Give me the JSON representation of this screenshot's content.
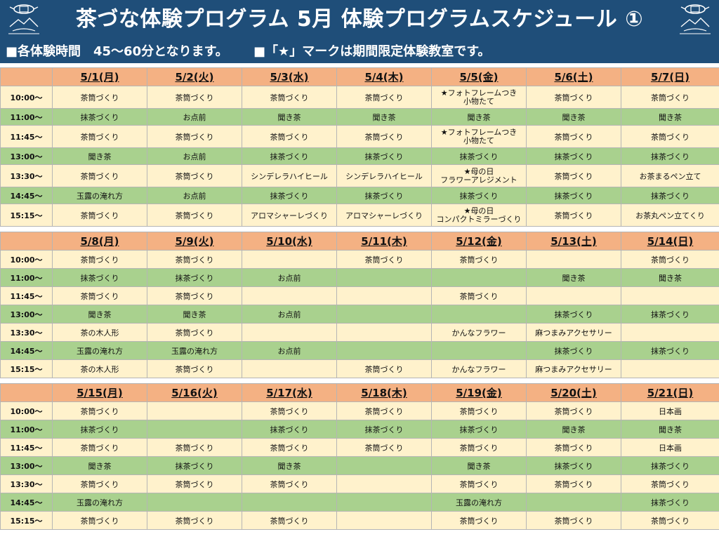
{
  "header": {
    "title": "茶づな体験プログラム 5月 体験プログラムスケジュール ①",
    "note_duration": "■各体験時間　45～60分となります。",
    "note_star": "■「★」マークは期間限定体験教室です。",
    "logo_left_icon": "chazuna-logo-icon",
    "logo_right_icon": "chazuna-logo-icon"
  },
  "colors": {
    "header_bg": "#1f4e79",
    "date_header_bg": "#f4b183",
    "row_cream": "#fff2cc",
    "row_green": "#a9d18e",
    "holiday_red": "#e8281e",
    "saturday_blue": "#2e9bd6"
  },
  "weeks": [
    {
      "days": [
        {
          "label": "5/1(月)",
          "color": "wd"
        },
        {
          "label": "5/2(火)",
          "color": "wd"
        },
        {
          "label": "5/3(水)",
          "color": "red"
        },
        {
          "label": "5/4(木)",
          "color": "red"
        },
        {
          "label": "5/5(金)",
          "color": "red"
        },
        {
          "label": "5/6(土)",
          "color": "blue"
        },
        {
          "label": "5/7(日)",
          "color": "red"
        }
      ],
      "rows": [
        {
          "time": "10:00～",
          "style": "cream",
          "cells": [
            "茶筒づくり",
            "茶筒づくり",
            "茶筒づくり",
            "茶筒づくり",
            "★フォトフレームつき\n小物たて",
            "茶筒づくり",
            "茶筒づくり"
          ]
        },
        {
          "time": "11:00～",
          "style": "green",
          "cells": [
            "抹茶づくり",
            "お点前",
            "聞き茶",
            "聞き茶",
            "聞き茶",
            "聞き茶",
            "聞き茶"
          ]
        },
        {
          "time": "11:45～",
          "style": "cream",
          "cells": [
            "茶筒づくり",
            "茶筒づくり",
            "茶筒づくり",
            "茶筒づくり",
            "★フォトフレームつき\n小物たて",
            "茶筒づくり",
            "茶筒づくり"
          ]
        },
        {
          "time": "13:00～",
          "style": "green",
          "cells": [
            "聞き茶",
            "お点前",
            "抹茶づくり",
            "抹茶づくり",
            "抹茶づくり",
            "抹茶づくり",
            "抹茶づくり"
          ]
        },
        {
          "time": "13:30～",
          "style": "cream",
          "cells": [
            "茶筒づくり",
            "茶筒づくり",
            "シンデレラハイヒール",
            "シンデレラハイヒール",
            "★母の日\nフラワーアレジメント",
            "茶筒づくり",
            "お茶まるペン立て"
          ]
        },
        {
          "time": "14:45～",
          "style": "green",
          "cells": [
            "玉露の淹れ方",
            "お点前",
            "抹茶づくり",
            "抹茶づくり",
            "抹茶づくり",
            "抹茶づくり",
            "抹茶づくり"
          ]
        },
        {
          "time": "15:15～",
          "style": "cream",
          "cells": [
            "茶筒づくり",
            "茶筒づくり",
            "アロマシャーレづくり",
            "アロマシャーレづくり",
            "★母の日\nコンパクトミラーづくり",
            "茶筒づくり",
            "お茶丸ペン立てくり"
          ]
        }
      ]
    },
    {
      "days": [
        {
          "label": "5/8(月)",
          "color": "wd"
        },
        {
          "label": "5/9(火)",
          "color": "wd"
        },
        {
          "label": "5/10(水)",
          "color": "wd"
        },
        {
          "label": "5/11(木)",
          "color": "wd"
        },
        {
          "label": "5/12(金)",
          "color": "wd"
        },
        {
          "label": "5/13(土)",
          "color": "blue"
        },
        {
          "label": "5/14(日)",
          "color": "red"
        }
      ],
      "rows": [
        {
          "time": "10:00～",
          "style": "cream",
          "cells": [
            "茶筒づくり",
            "茶筒づくり",
            "",
            "茶筒づくり",
            "茶筒づくり",
            "",
            "茶筒づくり"
          ]
        },
        {
          "time": "11:00～",
          "style": "green",
          "cells": [
            "抹茶づくり",
            "抹茶づくり",
            "お点前",
            "",
            "",
            "聞き茶",
            "聞き茶"
          ]
        },
        {
          "time": "11:45～",
          "style": "cream",
          "cells": [
            "茶筒づくり",
            "茶筒づくり",
            "",
            "",
            "茶筒づくり",
            "",
            ""
          ]
        },
        {
          "time": "13:00～",
          "style": "green",
          "cells": [
            "聞き茶",
            "聞き茶",
            "お点前",
            "",
            "",
            "抹茶づくり",
            "抹茶づくり"
          ]
        },
        {
          "time": "13:30～",
          "style": "cream",
          "cells": [
            "茶の木人形",
            "茶筒づくり",
            "",
            "",
            "かんなフラワー",
            "麻つまみアクセサリー",
            ""
          ]
        },
        {
          "time": "14:45～",
          "style": "green",
          "cells": [
            "玉露の淹れ方",
            "玉露の淹れ方",
            "お点前",
            "",
            "",
            "抹茶づくり",
            "抹茶づくり"
          ]
        },
        {
          "time": "15:15～",
          "style": "cream",
          "cells": [
            "茶の木人形",
            "茶筒づくり",
            "",
            "茶筒づくり",
            "かんなフラワー",
            "麻つまみアクセサリー",
            ""
          ]
        }
      ]
    },
    {
      "days": [
        {
          "label": "5/15(月)",
          "color": "wd"
        },
        {
          "label": "5/16(火)",
          "color": "wd"
        },
        {
          "label": "5/17(水)",
          "color": "wd"
        },
        {
          "label": "5/18(木)",
          "color": "wd"
        },
        {
          "label": "5/19(金)",
          "color": "wd"
        },
        {
          "label": "5/20(土)",
          "color": "blue"
        },
        {
          "label": "5/21(日)",
          "color": "red"
        }
      ],
      "rows": [
        {
          "time": "10:00～",
          "style": "cream",
          "cells": [
            "茶筒づくり",
            "",
            "茶筒づくり",
            "茶筒づくり",
            "茶筒づくり",
            "茶筒づくり",
            "日本画"
          ]
        },
        {
          "time": "11:00～",
          "style": "green",
          "cells": [
            "抹茶づくり",
            "",
            "抹茶づくり",
            "抹茶づくり",
            "抹茶づくり",
            "聞き茶",
            "聞き茶"
          ]
        },
        {
          "time": "11:45～",
          "style": "cream",
          "cells": [
            "茶筒づくり",
            "茶筒づくり",
            "茶筒づくり",
            "茶筒づくり",
            "茶筒づくり",
            "茶筒づくり",
            "日本画"
          ]
        },
        {
          "time": "13:00～",
          "style": "green",
          "cells": [
            "聞き茶",
            "抹茶づくり",
            "聞き茶",
            "",
            "聞き茶",
            "抹茶づくり",
            "抹茶づくり"
          ]
        },
        {
          "time": "13:30～",
          "style": "cream",
          "cells": [
            "茶筒づくり",
            "茶筒づくり",
            "茶筒づくり",
            "",
            "茶筒づくり",
            "茶筒づくり",
            "茶筒づくり"
          ]
        },
        {
          "time": "14:45～",
          "style": "green",
          "cells": [
            "玉露の淹れ方",
            "",
            "",
            "",
            "玉露の淹れ方",
            "",
            "抹茶づくり"
          ]
        },
        {
          "time": "15:15～",
          "style": "cream",
          "cells": [
            "茶筒づくり",
            "茶筒づくり",
            "茶筒づくり",
            "",
            "茶筒づくり",
            "茶筒づくり",
            "茶筒づくり"
          ]
        }
      ]
    }
  ]
}
